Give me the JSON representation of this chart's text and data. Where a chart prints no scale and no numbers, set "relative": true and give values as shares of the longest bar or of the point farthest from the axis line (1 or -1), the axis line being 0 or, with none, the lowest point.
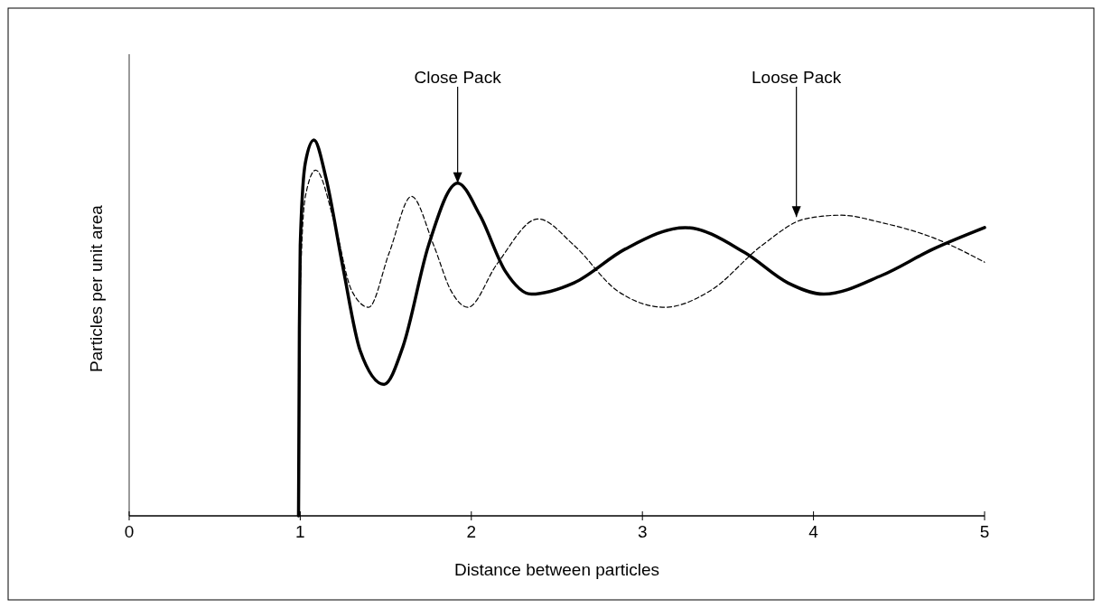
{
  "chart_data": {
    "type": "line",
    "relative": true,
    "xlabel": "Distance between particles",
    "ylabel": "Particles per unit area",
    "xlim": [
      0,
      5
    ],
    "xticks": [
      0,
      1,
      2,
      3,
      4,
      5
    ],
    "grid": false,
    "series": [
      {
        "color": "#000000",
        "line_style": "solid",
        "x": [
          0.99,
          0.995,
          1.0,
          1.03,
          1.08,
          1.15,
          1.25,
          1.35,
          1.49,
          1.6,
          1.75,
          1.92,
          2.05,
          2.2,
          2.35,
          2.6,
          2.9,
          3.25,
          3.6,
          3.85,
          4.06,
          4.4,
          4.7,
          5.0
        ],
        "values": [
          0,
          0.5,
          0.72,
          0.94,
          1.0,
          0.9,
          0.66,
          0.44,
          0.35,
          0.45,
          0.72,
          0.885,
          0.8,
          0.65,
          0.59,
          0.62,
          0.71,
          0.767,
          0.7,
          0.62,
          0.59,
          0.64,
          0.71,
          0.767
        ]
      },
      {
        "color": "#000000",
        "line_style": "dashed",
        "x": [
          0.99,
          1.0,
          1.03,
          1.09,
          1.2,
          1.3,
          1.4,
          1.52,
          1.65,
          1.78,
          1.88,
          1.98,
          2.15,
          2.39,
          2.6,
          2.85,
          3.13,
          3.4,
          3.7,
          3.95,
          4.16,
          4.4,
          4.7,
          5.0
        ],
        "values": [
          0,
          0.6,
          0.85,
          0.92,
          0.78,
          0.6,
          0.555,
          0.7,
          0.85,
          0.72,
          0.6,
          0.555,
          0.67,
          0.79,
          0.72,
          0.6,
          0.555,
          0.6,
          0.72,
          0.79,
          0.8,
          0.78,
          0.74,
          0.675
        ]
      }
    ],
    "annotations": [
      {
        "text": "Close Pack",
        "x": 1.92,
        "y": 0.885
      },
      {
        "text": "Loose Pack",
        "x": 3.9,
        "y": 0.795
      }
    ]
  }
}
